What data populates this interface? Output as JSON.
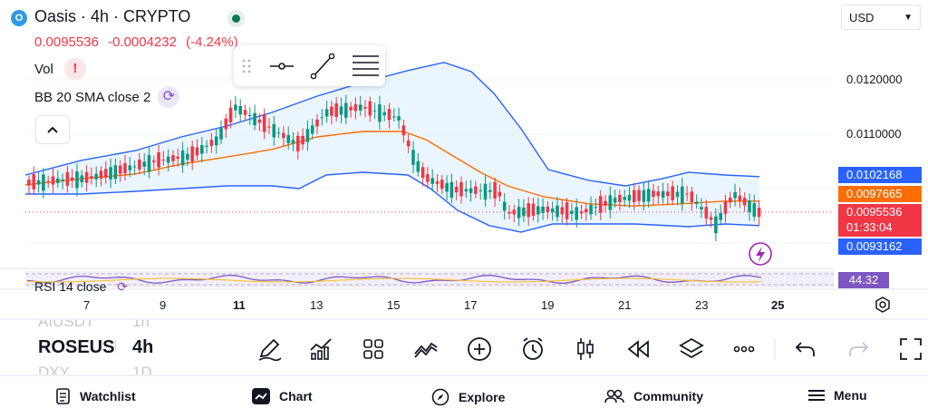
{
  "header": {
    "logo_text": "O",
    "title": "Oasis · 4h · CRYPTO",
    "price": "0.0095536",
    "change": "-0.0004232",
    "change_pct": "(-4.24%)",
    "currency": "USD"
  },
  "indicators": {
    "vol_label": "Vol",
    "bb_label": "BB 20 SMA close 2",
    "rsi_label": "RSI 14 close"
  },
  "price_axis": {
    "labels": [
      "0.0120000",
      "0.0110000"
    ],
    "upper_band_tag": "0.0102168",
    "basis_tag": "0.0097665",
    "last_price_tag": "0.0095536",
    "countdown": "01:33:04",
    "lower_band_tag": "0.0093162",
    "rsi_tag": "44.32"
  },
  "time_axis": [
    "7",
    "9",
    "11",
    "13",
    "15",
    "17",
    "19",
    "21",
    "23",
    "25"
  ],
  "symbol_list": {
    "prev_symbol": "AIUSDT",
    "prev_interval": "1h",
    "current_symbol": "ROSEUSD",
    "current_interval": "4h",
    "next_symbol": "DXY",
    "next_interval": "1D"
  },
  "toolbar_icons": [
    "pencil-icon",
    "indicators-icon",
    "layouts-icon",
    "compare-icon",
    "add-icon",
    "alarm-icon",
    "candles-icon",
    "replay-icon",
    "layers-icon",
    "more-icon",
    "undo-icon",
    "redo-icon",
    "fullscreen-icon"
  ],
  "bottom_nav": {
    "watchlist": "Watchlist",
    "chart": "Chart",
    "explore": "Explore",
    "community": "Community",
    "menu": "Menu"
  },
  "colors": {
    "up": "#089981",
    "down": "#f23645",
    "bb_band": "#2962ff",
    "bb_basis": "#ff6d00",
    "rsi": "#7e57c2"
  }
}
